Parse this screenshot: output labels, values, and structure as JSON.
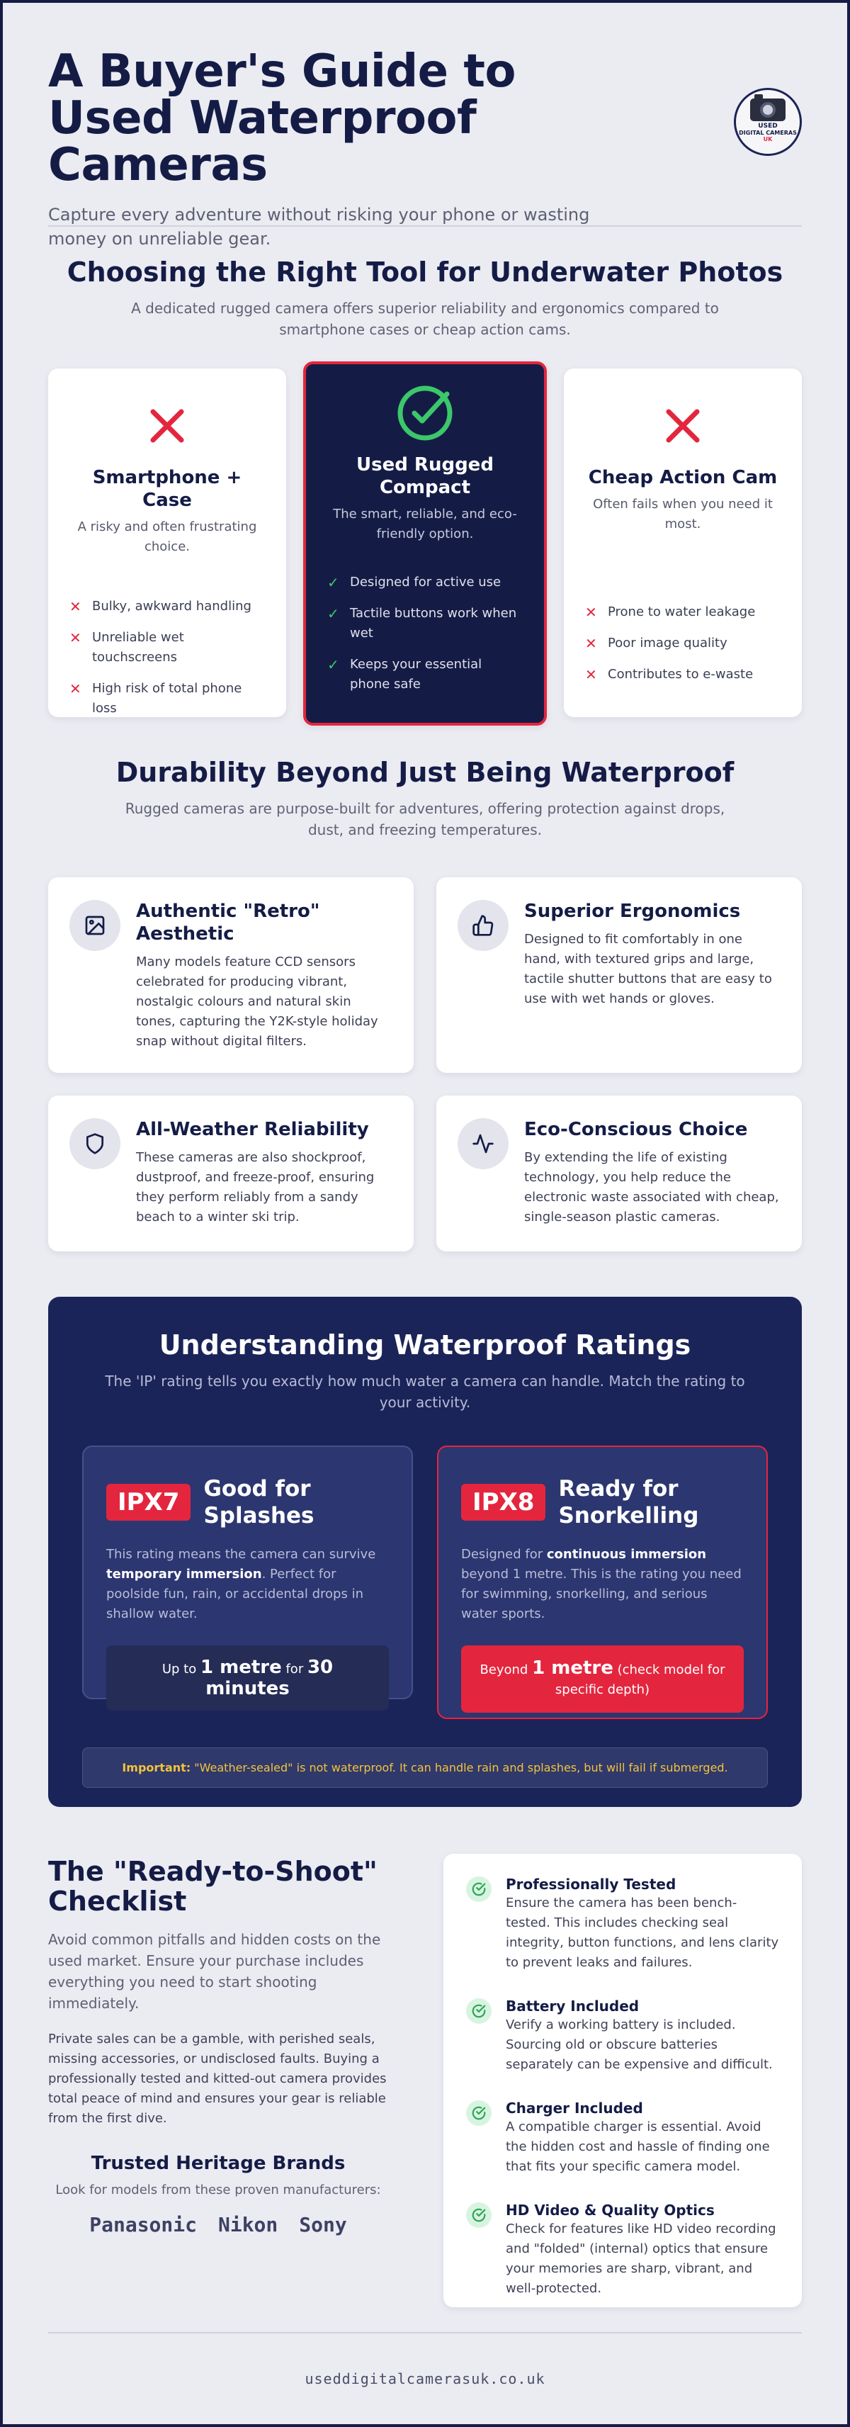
{
  "header": {
    "title": "A Buyer's Guide to Used Waterproof Cameras",
    "subtitle": "Capture every adventure without risking your phone or wasting money on unreliable gear.",
    "logo": {
      "line1": "USED",
      "line2": "DIGITAL CAMERAS",
      "line3": "UK"
    }
  },
  "comparison": {
    "title": "Choosing the Right Tool for Underwater Photos",
    "intro": "A dedicated rugged camera offers superior reliability and ergonomics compared to smartphone cases or cheap action cams.",
    "cards": [
      {
        "icon": "x-icon",
        "title": "Smartphone + Case",
        "subtitle": "A risky and often frustrating choice.",
        "points": [
          "Bulky, awkward handling",
          "Unreliable wet touchscreens",
          "High risk of total phone loss"
        ]
      },
      {
        "icon": "check-circle-icon",
        "title": "Used Rugged Compact",
        "subtitle": "The smart, reliable, and eco-friendly option.",
        "points": [
          "Designed for active use",
          "Tactile buttons work when wet",
          "Keeps your essential phone safe"
        ]
      },
      {
        "icon": "x-icon",
        "title": "Cheap Action Cam",
        "subtitle": "Often fails when you need it most.",
        "points": [
          "Prone to water leakage",
          "Poor image quality",
          "Contributes to e-waste"
        ]
      }
    ]
  },
  "durability": {
    "title": "Durability Beyond Just Being Waterproof",
    "intro": "Rugged cameras are purpose-built for adventures, offering protection against drops, dust, and freezing temperatures.",
    "features": [
      {
        "icon": "image-icon",
        "title": "Authentic \"Retro\" Aesthetic",
        "text": "Many models feature CCD sensors celebrated for producing vibrant, nostalgic colours and natural skin tones, capturing the Y2K-style holiday snap without digital filters."
      },
      {
        "icon": "thumbs-up-icon",
        "title": "Superior Ergonomics",
        "text": "Designed to fit comfortably in one hand, with textured grips and large, tactile shutter buttons that are easy to use with wet hands or gloves."
      },
      {
        "icon": "shield-icon",
        "title": "All-Weather Reliability",
        "text": "These cameras are also shockproof, dustproof, and freeze-proof, ensuring they perform reliably from a sandy beach to a winter ski trip."
      },
      {
        "icon": "activity-icon",
        "title": "Eco-Conscious Choice",
        "text": "By extending the life of existing technology, you help reduce the electronic waste associated with cheap, single-season plastic cameras."
      }
    ]
  },
  "ratings": {
    "title": "Understanding Waterproof Ratings",
    "intro": "The 'IP' rating tells you exactly how much water a camera can handle. Match the rating to your activity.",
    "ipx7": {
      "badge": "IPX7",
      "title": "Good for Splashes",
      "text_before": "This rating means the camera can survive ",
      "text_bold": "temporary immersion",
      "text_after": ". Perfect for poolside fun, rain, or accidental drops in shallow water.",
      "box_pre": "Up to ",
      "box_b1": "1 metre",
      "box_mid": " for ",
      "box_b2": "30 minutes"
    },
    "ipx8": {
      "badge": "IPX8",
      "title": "Ready for Snorkelling",
      "text_before": "Designed for ",
      "text_bold": "continuous immersion",
      "text_after": " beyond 1 metre. This is the rating you need for swimming, snorkelling, and serious water sports.",
      "box_pre": "Beyond ",
      "box_b1": "1 metre",
      "box_post": " (check model for specific depth)"
    },
    "notice_label": "Important:",
    "notice_text": " \"Weather-sealed\" is not waterproof. It can handle rain and splashes, but will fail if submerged."
  },
  "checklist": {
    "title": "The \"Ready-to-Shoot\" Checklist",
    "intro": "Avoid common pitfalls and hidden costs on the used market. Ensure your purchase includes everything you need to start shooting immediately.",
    "body": "Private sales can be a gamble, with perished seals, missing accessories, or undisclosed faults. Buying a professionally tested and kitted-out camera provides total peace of mind and ensures your gear is reliable from the first dive.",
    "brands_title": "Trusted Heritage Brands",
    "brands_sub": "Look for models from these proven manufacturers:",
    "brands": [
      "Panasonic",
      "Nikon",
      "Sony"
    ],
    "items": [
      {
        "title": "Professionally Tested",
        "text": "Ensure the camera has been bench-tested. This includes checking seal integrity, button functions, and lens clarity to prevent leaks and failures."
      },
      {
        "title": "Battery Included",
        "text": "Verify a working battery is included. Sourcing old or obscure batteries separately can be expensive and difficult."
      },
      {
        "title": "Charger Included",
        "text": "A compatible charger is essential. Avoid the hidden cost and hassle of finding one that fits your specific camera model."
      },
      {
        "title": "HD Video & Quality Optics",
        "text": "Check for features like HD video recording and \"folded\" (internal) optics that ensure your memories are sharp, vibrant, and well-protected."
      }
    ]
  },
  "footer": {
    "url": "useddigitalcamerasuk.co.uk"
  },
  "colors": {
    "navy": "#141c46",
    "accent_red": "#e3263e",
    "success_green": "#3cc76a",
    "warning_yellow": "#f2c33b"
  }
}
